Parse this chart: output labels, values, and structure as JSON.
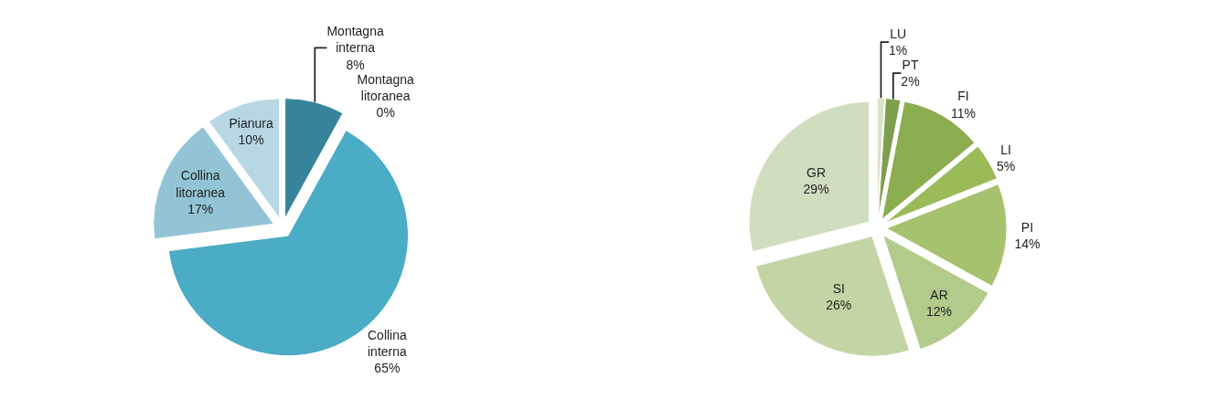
{
  "chart_data": [
    {
      "type": "pie",
      "categories": [
        "Montagna interna",
        "Montagna litoranea",
        "Collina interna",
        "Collina litoranea",
        "Pianura"
      ],
      "values": [
        8,
        0,
        65,
        17,
        10
      ],
      "value_labels": [
        "8%",
        "0%",
        "65%",
        "17%",
        "10%"
      ],
      "colors": [
        "#37849a",
        "#4aacc5",
        "#4aacc5",
        "#93c4d5",
        "#b7d7e4"
      ],
      "legend": false
    },
    {
      "type": "pie",
      "categories": [
        "LU",
        "PT",
        "FI",
        "LI",
        "PI",
        "AR",
        "SI",
        "GR"
      ],
      "values": [
        1,
        2,
        11,
        5,
        14,
        12,
        26,
        29
      ],
      "value_labels": [
        "1%",
        "2%",
        "11%",
        "5%",
        "14%",
        "12%",
        "26%",
        "29%"
      ],
      "colors": [
        "#d8e4c4",
        "#7e9e4e",
        "#8cac50",
        "#9bbb59",
        "#a6c26e",
        "#b3cb8a",
        "#c3d5a5",
        "#d0dec0"
      ],
      "legend": false
    }
  ]
}
